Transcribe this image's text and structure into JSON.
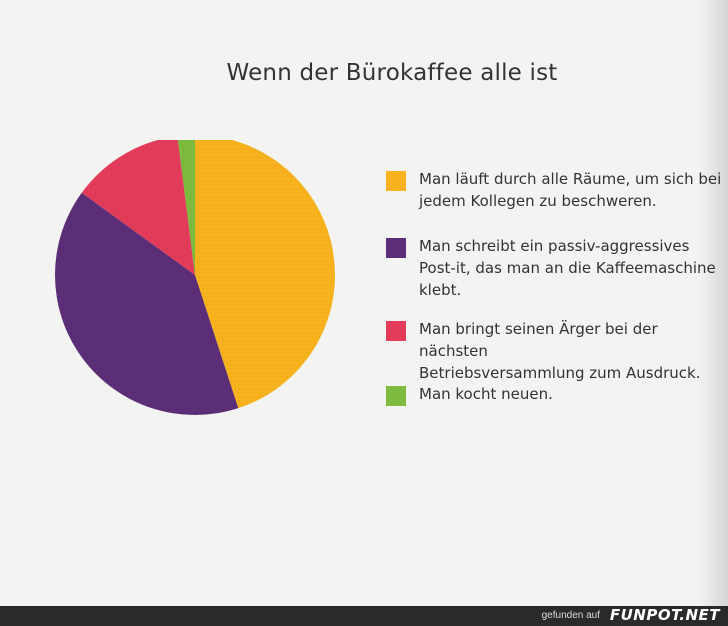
{
  "chart_data": {
    "type": "pie",
    "title": "Wenn der Bürokaffee alle ist",
    "slices": [
      {
        "label": "Man läuft durch alle Räume, um sich bei\njedem Kollegen zu beschweren.",
        "value": 45,
        "color": "#f7b21d"
      },
      {
        "label": "Man schreibt ein passiv-aggressives\nPost-it, das man an die Kaffeemaschine\nklebt.",
        "value": 40,
        "color": "#5b2e77"
      },
      {
        "label": "Man bringt seinen Ärger bei der nächsten\nBetriebsversammlung zum Ausdruck.",
        "value": 13,
        "color": "#e33c5a"
      },
      {
        "label": "Man kocht neuen.",
        "value": 2,
        "color": "#7dbb3e"
      }
    ],
    "legend_position": "right"
  },
  "footer": {
    "small": "gefunden auf",
    "brand": "FUNPOT.NET"
  }
}
